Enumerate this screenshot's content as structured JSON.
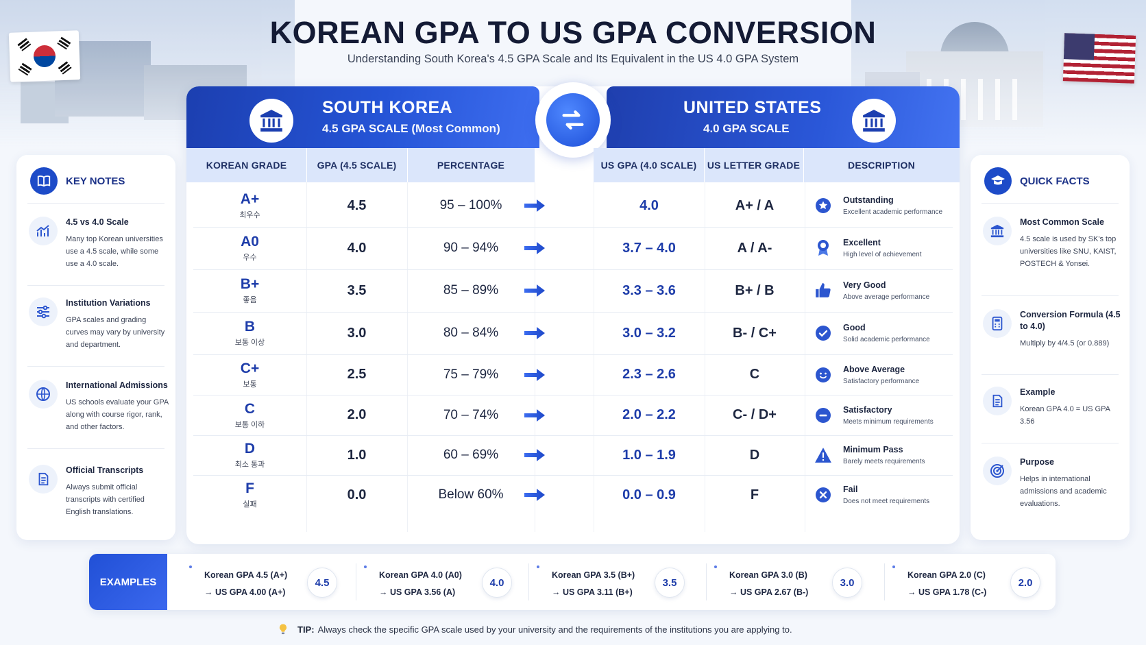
{
  "header": {
    "title": "KOREAN GPA TO US GPA CONVERSION",
    "subtitle": "Understanding South Korea's 4.5 GPA Scale and Its Equivalent in the US 4.0 GPA System"
  },
  "south_korea": {
    "title": "SOUTH KOREA",
    "subtitle": "4.5 GPA SCALE (Most Common)",
    "columns": [
      "KOREAN GRADE",
      "GPA (4.5 SCALE)",
      "PERCENTAGE"
    ]
  },
  "united_states": {
    "title": "UNITED STATES",
    "subtitle": "4.0 GPA SCALE",
    "columns": [
      "US GPA (4.0 SCALE)",
      "US LETTER GRADE",
      "DESCRIPTION"
    ]
  },
  "rows": [
    {
      "grade": "A+",
      "korean": "최우수",
      "gpa": "4.5",
      "pct": "95 – 100%",
      "us_gpa": "4.0",
      "letter": "A+ / A",
      "desc_title": "Outstanding",
      "desc_sub": "Excellent academic performance",
      "icon": "star-badge-icon"
    },
    {
      "grade": "A0",
      "korean": "우수",
      "gpa": "4.0",
      "pct": "90 – 94%",
      "us_gpa": "3.7 – 4.0",
      "letter": "A / A-",
      "desc_title": "Excellent",
      "desc_sub": "High level of achievement",
      "icon": "award-ribbon-icon"
    },
    {
      "grade": "B+",
      "korean": "좋음",
      "gpa": "3.5",
      "pct": "85 – 89%",
      "us_gpa": "3.3 – 3.6",
      "letter": "B+ / B",
      "desc_title": "Very Good",
      "desc_sub": "Above average performance",
      "icon": "thumbs-up-icon"
    },
    {
      "grade": "B",
      "korean": "보통 이상",
      "gpa": "3.0",
      "pct": "80 – 84%",
      "us_gpa": "3.0 – 3.2",
      "letter": "B- / C+",
      "desc_title": "Good",
      "desc_sub": "Solid academic performance",
      "icon": "check-circle-icon"
    },
    {
      "grade": "C+",
      "korean": "보통",
      "gpa": "2.5",
      "pct": "75 – 79%",
      "us_gpa": "2.3 – 2.6",
      "letter": "C",
      "desc_title": "Above Average",
      "desc_sub": "Satisfactory performance",
      "icon": "smile-icon"
    },
    {
      "grade": "C",
      "korean": "보통 이하",
      "gpa": "2.0",
      "pct": "70 – 74%",
      "us_gpa": "2.0 – 2.2",
      "letter": "C- / D+",
      "desc_title": "Satisfactory",
      "desc_sub": "Meets minimum requirements",
      "icon": "minus-circle-icon"
    },
    {
      "grade": "D",
      "korean": "최소 통과",
      "gpa": "1.0",
      "pct": "60 – 69%",
      "us_gpa": "1.0 – 1.9",
      "letter": "D",
      "desc_title": "Minimum Pass",
      "desc_sub": "Barely meets requirements",
      "icon": "warning-icon"
    },
    {
      "grade": "F",
      "korean": "실패",
      "gpa": "0.0",
      "pct": "Below 60%",
      "us_gpa": "0.0 – 0.9",
      "letter": "F",
      "desc_title": "Fail",
      "desc_sub": "Does not meet requirements",
      "icon": "x-circle-icon"
    }
  ],
  "key_notes": {
    "title": "KEY NOTES",
    "items": [
      {
        "title": "4.5 vs 4.0 Scale",
        "body": "Many top Korean universities use a 4.5 scale, while some use a 4.0 scale.",
        "icon": "chart-up-icon"
      },
      {
        "title": "Institution Variations",
        "body": "GPA scales and grading curves may vary by university and department.",
        "icon": "sliders-icon"
      },
      {
        "title": "International Admissions",
        "body": "US schools evaluate your GPA along with course rigor, rank, and other factors.",
        "icon": "globe-icon"
      },
      {
        "title": "Official Transcripts",
        "body": "Always submit official transcripts with certified English translations.",
        "icon": "document-icon"
      }
    ]
  },
  "quick_facts": {
    "title": "QUICK FACTS",
    "items": [
      {
        "title": "Most Common Scale",
        "body": "4.5 scale is used by SK's top universities like SNU, KAIST, POSTECH & Yonsei.",
        "icon": "university-icon"
      },
      {
        "title": "Conversion Formula (4.5 to 4.0)",
        "body": "Multiply by 4/4.5 (or 0.889)",
        "icon": "calculator-icon"
      },
      {
        "title": "Example",
        "body": "Korean GPA 4.0 = US GPA 3.56",
        "icon": "document-icon"
      },
      {
        "title": "Purpose",
        "body": "Helps in international admissions and academic evaluations.",
        "icon": "target-icon"
      }
    ]
  },
  "examples": {
    "label": "EXAMPLES",
    "items": [
      {
        "l1": "Korean GPA 4.5 (A+)",
        "l2": "→ US GPA 4.00 (A+)",
        "badge": "4.5"
      },
      {
        "l1": "Korean GPA 4.0 (A0)",
        "l2": "→ US GPA 3.56 (A)",
        "badge": "4.0"
      },
      {
        "l1": "Korean GPA 3.5 (B+)",
        "l2": "→ US GPA 3.11 (B+)",
        "badge": "3.5"
      },
      {
        "l1": "Korean GPA 3.0 (B)",
        "l2": "→ US GPA 2.67 (B-)",
        "badge": "3.0"
      },
      {
        "l1": "Korean GPA 2.0 (C)",
        "l2": "→ US GPA 1.78 (C-)",
        "badge": "2.0"
      }
    ]
  },
  "tip": {
    "label": "TIP:",
    "text": "Always check the specific GPA scale used by your university and the requirements of the institutions you are applying to."
  },
  "colors": {
    "accent": "#2554d6",
    "dark_navy": "#141b35",
    "header_strip": "#dbe6fb"
  }
}
